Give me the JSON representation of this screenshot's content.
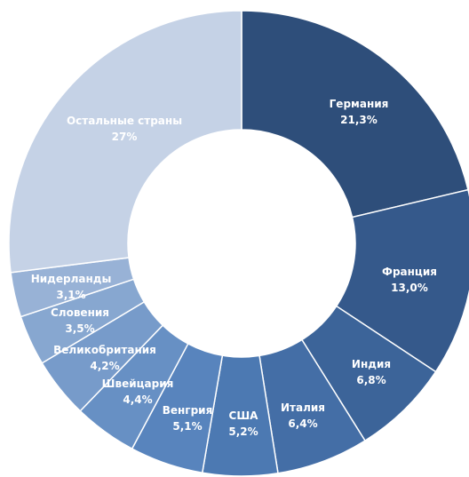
{
  "chart_data": {
    "type": "pie",
    "variant": "donut",
    "title": "",
    "unit": "%",
    "slices": [
      {
        "label": "Германия",
        "value": 21.3,
        "value_text": "21,3%",
        "color": "#2e4e7a"
      },
      {
        "label": "Франция",
        "value": 13.0,
        "value_text": "13,0%",
        "color": "#35598b"
      },
      {
        "label": "Индия",
        "value": 6.8,
        "value_text": "6,8%",
        "color": "#3c6499"
      },
      {
        "label": "Италия",
        "value": 6.4,
        "value_text": "6,4%",
        "color": "#446ea6"
      },
      {
        "label": "США",
        "value": 5.2,
        "value_text": "5,2%",
        "color": "#4c79b2"
      },
      {
        "label": "Венгрия",
        "value": 5.1,
        "value_text": "5,1%",
        "color": "#5884bd"
      },
      {
        "label": "Швейцария",
        "value": 4.4,
        "value_text": "4,4%",
        "color": "#6790c4"
      },
      {
        "label": "Великобритания",
        "value": 4.2,
        "value_text": "4,2%",
        "color": "#779bca"
      },
      {
        "label": "Словения",
        "value": 3.5,
        "value_text": "3,5%",
        "color": "#87a7d0"
      },
      {
        "label": "Нидерланды",
        "value": 3.1,
        "value_text": "3,1%",
        "color": "#98b2d6"
      },
      {
        "label": "Остальные страны",
        "value": 27,
        "value_text": "27%",
        "color": "#c5d2e6"
      }
    ]
  }
}
